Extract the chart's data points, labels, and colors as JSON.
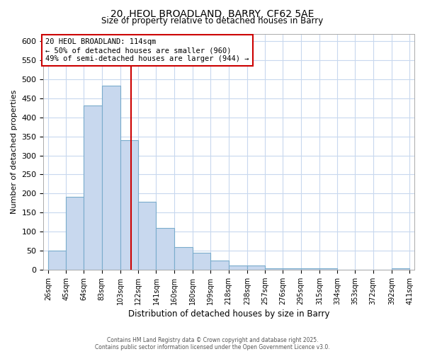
{
  "title": "20, HEOL BROADLAND, BARRY, CF62 5AE",
  "subtitle": "Size of property relative to detached houses in Barry",
  "xlabel": "Distribution of detached houses by size in Barry",
  "ylabel": "Number of detached properties",
  "bar_color": "#c8d8ee",
  "bar_edge_color": "#7aaccc",
  "background_color": "#ffffff",
  "grid_color": "#c8d8ee",
  "vline_x": 114,
  "vline_color": "#cc0000",
  "annotation_text": "20 HEOL BROADLAND: 114sqm\n← 50% of detached houses are smaller (960)\n49% of semi-detached houses are larger (944) →",
  "annotation_box_color": "#ffffff",
  "annotation_box_edge": "#cc0000",
  "bin_edges": [
    26,
    45,
    64,
    83,
    103,
    122,
    141,
    160,
    180,
    199,
    218,
    238,
    257,
    276,
    295,
    315,
    334,
    353,
    372,
    392,
    411
  ],
  "bin_counts": [
    50,
    192,
    432,
    484,
    340,
    178,
    110,
    60,
    44,
    24,
    10,
    10,
    4,
    4,
    4,
    4,
    0,
    0,
    0,
    4
  ],
  "ylim": [
    0,
    620
  ],
  "yticks": [
    0,
    50,
    100,
    150,
    200,
    250,
    300,
    350,
    400,
    450,
    500,
    550,
    600
  ],
  "footnote": "Contains HM Land Registry data © Crown copyright and database right 2025.\nContains public sector information licensed under the Open Government Licence v3.0."
}
